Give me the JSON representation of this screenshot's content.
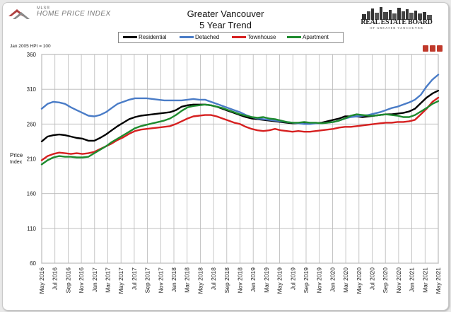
{
  "header": {
    "title": "Greater Vancouver",
    "subtitle": "5 Year Trend",
    "mls_small": "MLS®",
    "mls_big": "HOME PRICE INDEX",
    "board_name": "REAL ESTATE BOARD",
    "board_sub": "OF GREATER VANCOUVER",
    "note": "Jan 2005 HPI = 100"
  },
  "colors": {
    "Residential": "#000000",
    "Detached": "#4a7cc7",
    "Townhouse": "#d62020",
    "Apartment": "#1e8b2e"
  },
  "chart_data": {
    "type": "line",
    "title": "Greater Vancouver 5 Year Trend",
    "xlabel": "",
    "ylabel": "Price Index",
    "ylim": [
      60,
      360
    ],
    "yticks": [
      60,
      110,
      160,
      210,
      260,
      310,
      360
    ],
    "grid": true,
    "legend": "top",
    "x_tick_labels": [
      "May 2016",
      "Jul 2016",
      "Sep 2016",
      "Nov 2016",
      "Jan 2017",
      "Mar 2017",
      "May 2017",
      "Jul 2017",
      "Sep 2017",
      "Nov 2017",
      "Jan 2018",
      "Mar 2018",
      "May 2018",
      "Jul 2018",
      "Sep 2018",
      "Nov 2018",
      "Jan 2019",
      "Mar 2019",
      "May 2019",
      "Jul 2019",
      "Sep 2019",
      "Nov 2019",
      "Jan 2020",
      "Mar 2020",
      "May 2020",
      "Jul 2020",
      "Sep 2020",
      "Nov 2020",
      "Jan 2021",
      "Mar 2021",
      "May 2021"
    ],
    "series": [
      {
        "name": "Residential",
        "values": [
          235,
          242,
          244,
          245,
          244,
          242,
          240,
          239,
          236,
          236,
          240,
          245,
          251,
          257,
          262,
          267,
          270,
          272,
          273,
          274,
          275,
          276,
          277,
          280,
          285,
          287,
          288,
          288,
          288,
          287,
          285,
          282,
          279,
          276,
          273,
          270,
          268,
          267,
          266,
          265,
          264,
          263,
          262,
          261,
          261,
          261,
          261,
          261,
          262,
          264,
          266,
          268,
          271,
          271,
          271,
          270,
          271,
          272,
          273,
          274,
          274,
          275,
          276,
          278,
          282,
          290,
          298,
          304,
          308
        ]
      },
      {
        "name": "Detached",
        "values": [
          282,
          289,
          292,
          291,
          289,
          284,
          280,
          276,
          272,
          271,
          273,
          277,
          283,
          289,
          292,
          295,
          297,
          297,
          297,
          296,
          295,
          294,
          294,
          294,
          294,
          295,
          296,
          295,
          295,
          292,
          289,
          286,
          283,
          280,
          277,
          273,
          270,
          268,
          267,
          266,
          265,
          264,
          263,
          262,
          261,
          260,
          260,
          261,
          261,
          262,
          263,
          265,
          268,
          270,
          271,
          272,
          273,
          275,
          277,
          280,
          283,
          285,
          288,
          291,
          295,
          302,
          314,
          324,
          331
        ]
      },
      {
        "name": "Townhouse",
        "values": [
          208,
          214,
          217,
          219,
          218,
          217,
          218,
          217,
          218,
          220,
          224,
          228,
          232,
          237,
          241,
          246,
          250,
          252,
          253,
          254,
          255,
          256,
          257,
          260,
          264,
          268,
          271,
          272,
          273,
          273,
          271,
          268,
          265,
          262,
          260,
          256,
          253,
          251,
          250,
          251,
          253,
          251,
          250,
          249,
          250,
          249,
          249,
          250,
          251,
          252,
          253,
          255,
          256,
          256,
          257,
          258,
          259,
          260,
          261,
          262,
          262,
          263,
          263,
          264,
          266,
          274,
          282,
          292,
          298
        ]
      },
      {
        "name": "Apartment",
        "values": [
          202,
          208,
          212,
          214,
          213,
          213,
          212,
          212,
          213,
          218,
          223,
          228,
          234,
          239,
          244,
          249,
          254,
          257,
          259,
          261,
          263,
          265,
          268,
          273,
          279,
          284,
          286,
          287,
          288,
          287,
          285,
          283,
          280,
          277,
          274,
          272,
          270,
          269,
          270,
          268,
          267,
          265,
          263,
          262,
          262,
          263,
          262,
          262,
          261,
          262,
          263,
          265,
          268,
          272,
          274,
          273,
          272,
          272,
          273,
          274,
          273,
          272,
          270,
          270,
          273,
          278,
          283,
          289,
          293
        ]
      }
    ]
  }
}
